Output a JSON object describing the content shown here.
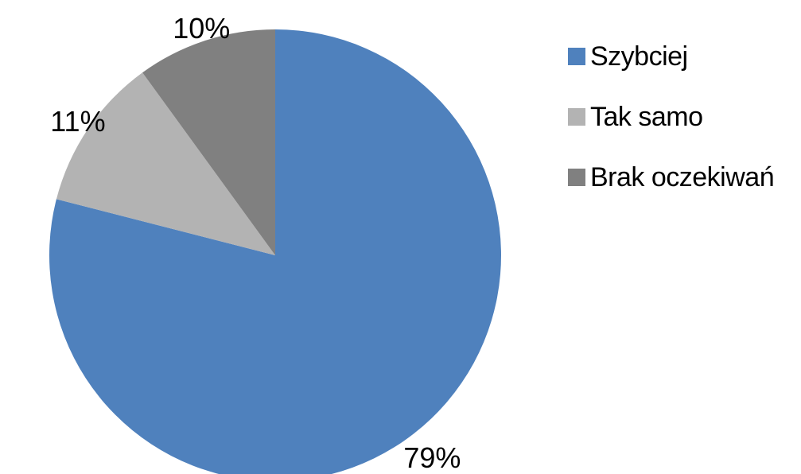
{
  "chart_data": {
    "type": "pie",
    "title": "",
    "categories": [
      "Szybciej",
      "Tak samo",
      "Brak oczekiwań"
    ],
    "values": [
      79,
      11,
      10
    ],
    "data_labels": [
      "79%",
      "11%",
      "10%"
    ],
    "colors": [
      "#4F81BD",
      "#B3B3B3",
      "#808080"
    ],
    "start_angle_deg": 0,
    "direction": "clockwise",
    "legend": {
      "placement": "right",
      "entries": [
        "Szybciej",
        "Tak samo",
        "Brak oczekiwań"
      ]
    }
  }
}
